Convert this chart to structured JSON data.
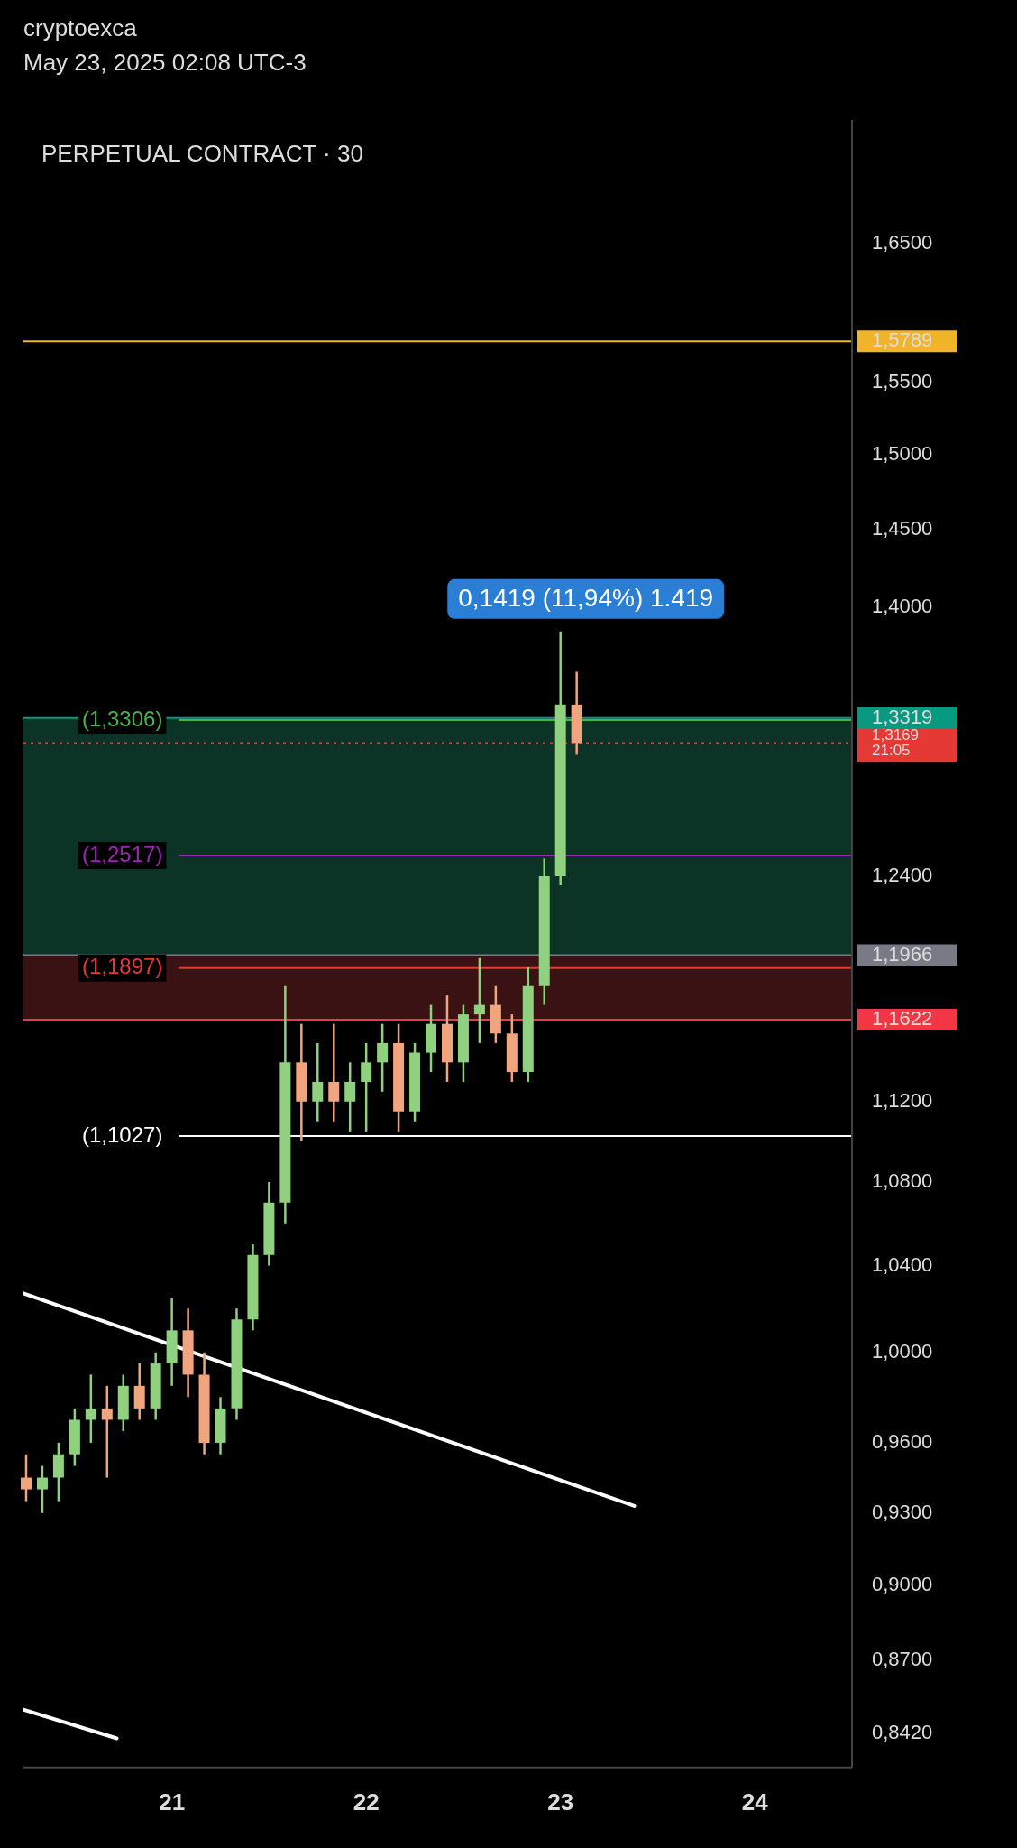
{
  "chart_data": {
    "type": "candlestick",
    "title": "PERPETUAL CONTRACT · 30",
    "annotations": [
      "cryptoexca",
      "May 23, 2025 02:08 UTC-3",
      "0,1419 (11,94%) 1.419"
    ],
    "x": [
      "2025-05-20T06:00",
      "2025-05-20T08:00",
      "2025-05-20T10:00",
      "2025-05-20T12:00",
      "2025-05-20T14:00",
      "2025-05-20T16:00",
      "2025-05-20T18:00",
      "2025-05-20T20:00",
      "2025-05-20T22:00",
      "2025-05-21T00:00",
      "2025-05-21T02:00",
      "2025-05-21T04:00",
      "2025-05-21T06:00",
      "2025-05-21T08:00",
      "2025-05-21T10:00",
      "2025-05-21T12:00",
      "2025-05-21T14:00",
      "2025-05-21T16:00",
      "2025-05-21T18:00",
      "2025-05-21T20:00",
      "2025-05-21T22:00",
      "2025-05-22T00:00",
      "2025-05-22T02:00",
      "2025-05-22T04:00",
      "2025-05-22T06:00",
      "2025-05-22T08:00",
      "2025-05-22T10:00",
      "2025-05-22T12:00",
      "2025-05-22T14:00",
      "2025-05-22T16:00",
      "2025-05-22T18:00",
      "2025-05-22T20:00",
      "2025-05-22T22:00",
      "2025-05-23T00:00",
      "2025-05-23T02:00"
    ],
    "ohlc": [
      [
        0.945,
        0.955,
        0.935,
        0.94
      ],
      [
        0.94,
        0.95,
        0.93,
        0.945
      ],
      [
        0.945,
        0.96,
        0.935,
        0.955
      ],
      [
        0.955,
        0.975,
        0.95,
        0.97
      ],
      [
        0.97,
        0.99,
        0.96,
        0.975
      ],
      [
        0.975,
        0.985,
        0.945,
        0.97
      ],
      [
        0.97,
        0.99,
        0.965,
        0.985
      ],
      [
        0.985,
        0.995,
        0.97,
        0.975
      ],
      [
        0.975,
        1.0,
        0.97,
        0.995
      ],
      [
        0.995,
        1.025,
        0.985,
        1.01
      ],
      [
        1.01,
        1.02,
        0.98,
        0.99
      ],
      [
        0.99,
        1.0,
        0.955,
        0.96
      ],
      [
        0.96,
        0.98,
        0.955,
        0.975
      ],
      [
        0.975,
        1.02,
        0.97,
        1.015
      ],
      [
        1.015,
        1.05,
        1.01,
        1.045
      ],
      [
        1.045,
        1.08,
        1.04,
        1.07
      ],
      [
        1.07,
        1.18,
        1.06,
        1.14
      ],
      [
        1.14,
        1.16,
        1.1,
        1.12
      ],
      [
        1.12,
        1.15,
        1.11,
        1.13
      ],
      [
        1.13,
        1.16,
        1.11,
        1.12
      ],
      [
        1.12,
        1.14,
        1.105,
        1.13
      ],
      [
        1.13,
        1.15,
        1.105,
        1.14
      ],
      [
        1.14,
        1.16,
        1.125,
        1.15
      ],
      [
        1.15,
        1.16,
        1.105,
        1.115
      ],
      [
        1.115,
        1.15,
        1.11,
        1.145
      ],
      [
        1.145,
        1.17,
        1.135,
        1.16
      ],
      [
        1.16,
        1.175,
        1.13,
        1.14
      ],
      [
        1.14,
        1.17,
        1.13,
        1.165
      ],
      [
        1.165,
        1.195,
        1.15,
        1.17
      ],
      [
        1.17,
        1.18,
        1.15,
        1.155
      ],
      [
        1.155,
        1.165,
        1.13,
        1.135
      ],
      [
        1.135,
        1.19,
        1.13,
        1.18
      ],
      [
        1.18,
        1.25,
        1.17,
        1.24
      ],
      [
        1.24,
        1.385,
        1.235,
        1.34
      ],
      [
        1.34,
        1.36,
        1.31,
        1.317
      ]
    ],
    "colors": [
      "#f0a57e",
      "#8fd17e",
      "#8fd17e",
      "#8fd17e",
      "#8fd17e",
      "#f0a57e",
      "#8fd17e",
      "#f0a57e",
      "#8fd17e",
      "#8fd17e",
      "#f0a57e",
      "#f0a57e",
      "#8fd17e",
      "#8fd17e",
      "#8fd17e",
      "#8fd17e",
      "#8fd17e",
      "#f0a57e",
      "#8fd17e",
      "#f0a57e",
      "#8fd17e",
      "#8fd17e",
      "#8fd17e",
      "#f0a57e",
      "#8fd17e",
      "#8fd17e",
      "#f0a57e",
      "#8fd17e",
      "#8fd17e",
      "#f0a57e",
      "#f0a57e",
      "#8fd17e",
      "#8fd17e",
      "#8fd17e",
      "#f0a57e"
    ],
    "series": [
      {
        "type": "line",
        "color": "#ffffff",
        "x": [
          "2025-05-20T05:40",
          "2025-05-23T09:07"
        ],
        "values": [
          1.027,
          0.933
        ]
      },
      {
        "type": "line",
        "color": "#ffffff",
        "x": [
          "2025-05-20T05:40",
          "2025-05-20T17:12"
        ],
        "values": [
          0.851,
          0.84
        ]
      }
    ],
    "xlim": [
      "2025-05-20T05:40",
      "2025-05-24T12:00"
    ],
    "xticks": [
      {
        "value": "2025-05-21",
        "label": "21"
      },
      {
        "value": "2025-05-22",
        "label": "22"
      },
      {
        "value": "2025-05-23",
        "label": "23"
      },
      {
        "value": "2025-05-24",
        "label": "24"
      }
    ],
    "ylim": [
      0.829,
      1.745
    ],
    "yticks": [
      {
        "value": 1.65,
        "label": "1,6500"
      },
      {
        "value": 1.5789,
        "label": "1,5789"
      },
      {
        "value": 1.55,
        "label": "1,5500"
      },
      {
        "value": 1.5,
        "label": "1,5000"
      },
      {
        "value": 1.45,
        "label": "1,4500"
      },
      {
        "value": 1.4,
        "label": "1,4000"
      },
      {
        "value": 1.3319,
        "label": "1,3319"
      },
      {
        "value": 1.3169,
        "label": "1,3169\n21:05"
      },
      {
        "value": 1.24,
        "label": "1,2400"
      },
      {
        "value": 1.1966,
        "label": "1,1966"
      },
      {
        "value": 1.1622,
        "label": "1,1622"
      },
      {
        "value": 1.12,
        "label": "1,1200"
      },
      {
        "value": 1.08,
        "label": "1,0800"
      },
      {
        "value": 1.04,
        "label": "1,0400"
      },
      {
        "value": 1.0,
        "label": "1,0000"
      },
      {
        "value": 0.96,
        "label": "0,9600"
      },
      {
        "value": 0.93,
        "label": "0,9300"
      },
      {
        "value": 0.9,
        "label": "0,9000"
      },
      {
        "value": 0.87,
        "label": "0,8700"
      },
      {
        "value": 0.842,
        "label": "0,8420"
      }
    ],
    "log": true,
    "grid": false,
    "legend": false,
    "marker": "none",
    "ref_lines": [
      {
        "axis": "y",
        "value": 1.5789,
        "label": null,
        "color": "#f0b429"
      },
      {
        "axis": "y",
        "value": 1.3306,
        "label": "(1,3306)",
        "color": "#4caf50"
      },
      {
        "axis": "y",
        "value": 1.2517,
        "label": "(1,2517)",
        "color": "#9c27b0"
      },
      {
        "axis": "y",
        "value": 1.1897,
        "label": "(1,1897)",
        "color": "#e53935"
      },
      {
        "axis": "y",
        "value": 1.1027,
        "label": "(1,1027)",
        "color": "#ffffff"
      },
      {
        "axis": "y",
        "value": 1.3169,
        "label": null,
        "color": "#e53935",
        "line_style": "dotted"
      },
      {
        "axis": "y",
        "value": 1.3319,
        "label": null,
        "color": "#089981"
      },
      {
        "axis": "y",
        "value": 1.1966,
        "label": null,
        "color": "#787b86"
      },
      {
        "axis": "y",
        "value": 1.1622,
        "label": null,
        "color": "#f23645"
      }
    ],
    "bands": [
      {
        "axis": "y",
        "from": 1.1966,
        "to": 1.3319,
        "color": "#0b3326"
      },
      {
        "axis": "y",
        "from": 1.1622,
        "to": 1.1966,
        "color": "#3a1214"
      }
    ]
  }
}
